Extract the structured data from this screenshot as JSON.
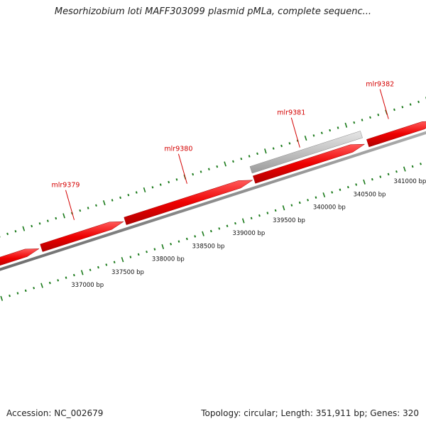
{
  "title": "Mesorhizobium loti MAFF303099 plasmid pMLa, complete sequenc...",
  "footer": {
    "accession_label": "Accession:",
    "accession": "NC_002679",
    "topology_label": "Topology:",
    "topology": "circular",
    "length_label": "Length:",
    "length": "351,911 bp",
    "genes_label": "Genes:",
    "genes": "320"
  },
  "colors": {
    "gene_forward": "#ee0000",
    "gene_other": "#bdbdbd",
    "backbone": "#8a8a8a",
    "ticks": "#1a7a1a",
    "gene_label": "#d40000"
  },
  "view": {
    "start_bp": 336000,
    "end_bp": 341550
  },
  "genes": [
    {
      "name": "",
      "start": 336000,
      "end": 336600,
      "track": "forward"
    },
    {
      "name": "mlr9379",
      "start": 336630,
      "end": 337650,
      "track": "forward"
    },
    {
      "name": "mlr9380",
      "start": 337670,
      "end": 339250,
      "track": "forward"
    },
    {
      "name": "mlr9381",
      "start": 339270,
      "end": 340640,
      "track": "forward"
    },
    {
      "name": "",
      "start": 339270,
      "end": 340640,
      "track": "outer"
    },
    {
      "name": "mlr9382",
      "start": 340680,
      "end": 341530,
      "track": "forward"
    }
  ],
  "gene_label_anchors": [
    {
      "name": "mlr9379",
      "bp": 337100
    },
    {
      "name": "mlr9380",
      "bp": 338500
    },
    {
      "name": "mlr9381",
      "bp": 339900
    },
    {
      "name": "mlr9382",
      "bp": 341000
    }
  ],
  "bp_labels": [
    {
      "bp": 337000,
      "text": "337000 bp"
    },
    {
      "bp": 337500,
      "text": "337500 bp"
    },
    {
      "bp": 338000,
      "text": "338000 bp"
    },
    {
      "bp": 338500,
      "text": "338500 bp"
    },
    {
      "bp": 339000,
      "text": "339000 bp"
    },
    {
      "bp": 339500,
      "text": "339500 bp"
    },
    {
      "bp": 340000,
      "text": "340000 bp"
    },
    {
      "bp": 340500,
      "text": "340500 bp"
    },
    {
      "bp": 341000,
      "text": "341000 bp"
    }
  ]
}
